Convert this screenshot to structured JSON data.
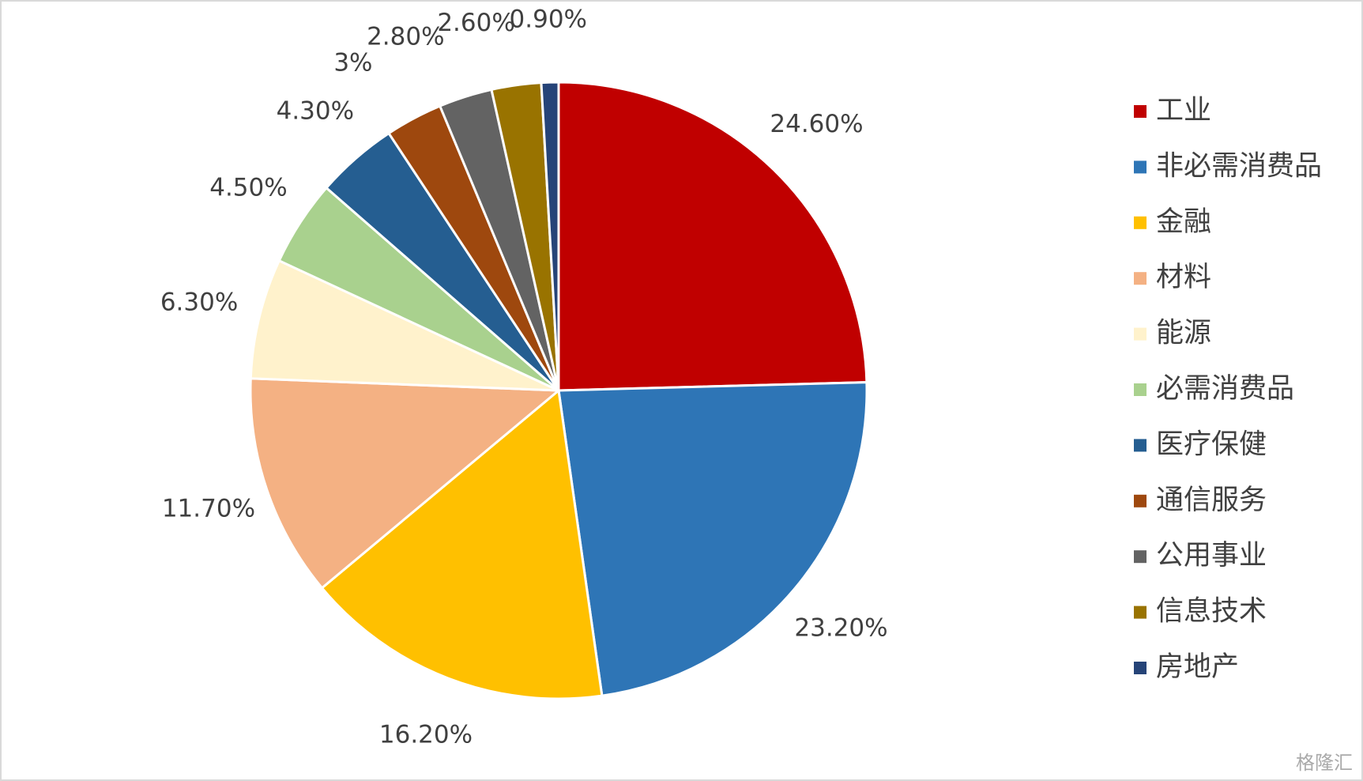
{
  "chart_data": {
    "type": "pie",
    "categories": [
      "工业",
      "非必需消费品",
      "金融",
      "材料",
      "能源",
      "必需消费品",
      "医疗保健",
      "通信服务",
      "公用事业",
      "信息技术",
      "房地产"
    ],
    "values": [
      24.6,
      23.2,
      16.2,
      11.7,
      6.3,
      4.5,
      4.3,
      3,
      2.8,
      2.6,
      0.9
    ],
    "value_labels": [
      "24.60%",
      "23.20%",
      "16.20%",
      "11.70%",
      "6.30%",
      "4.50%",
      "4.30%",
      "3%",
      "2.80%",
      "2.60%",
      "0.90%"
    ],
    "colors": [
      "#C00000",
      "#2E75B6",
      "#FFC000",
      "#F4B183",
      "#FFF2CC",
      "#A9D18E",
      "#255E91",
      "#9E480E",
      "#636363",
      "#997300",
      "#264478"
    ],
    "legend": "right",
    "watermark": "格隆汇"
  }
}
